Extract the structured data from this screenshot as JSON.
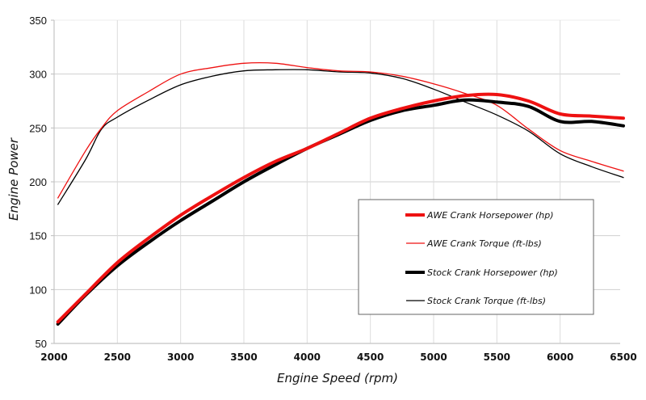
{
  "chart_data": {
    "type": "line",
    "title": "",
    "xlabel": "Engine Speed (rpm)",
    "ylabel": "Engine Power",
    "xlim": [
      2000,
      6500
    ],
    "ylim": [
      50,
      350
    ],
    "x_ticks": [
      2000,
      2500,
      3000,
      3500,
      4000,
      4500,
      5000,
      5500,
      6000,
      6500
    ],
    "y_ticks": [
      50,
      100,
      150,
      200,
      250,
      300,
      350
    ],
    "grid": true,
    "legend_position": "center-right",
    "series": [
      {
        "name": "AWE Crank Horsepower (hp)",
        "color": "#ee1111",
        "weight": "thick",
        "x": [
          2030,
          2250,
          2500,
          2750,
          3000,
          3250,
          3500,
          3750,
          4000,
          4250,
          4500,
          4750,
          5000,
          5250,
          5500,
          5750,
          6000,
          6250,
          6500
        ],
        "y": [
          70,
          96,
          125,
          148,
          169,
          187,
          204,
          219,
          231,
          245,
          259,
          268,
          275,
          280,
          281,
          275,
          263,
          261,
          259
        ]
      },
      {
        "name": "AWE Crank Torque (ft-lbs)",
        "color": "#ee1111",
        "weight": "thin",
        "x": [
          2030,
          2250,
          2375,
          2500,
          2750,
          3000,
          3250,
          3500,
          3750,
          4000,
          4250,
          4500,
          4750,
          5000,
          5250,
          5500,
          5750,
          6000,
          6250,
          6500
        ],
        "y": [
          185,
          229,
          250,
          266,
          284,
          300,
          306,
          310,
          310,
          306,
          303,
          302,
          298,
          291,
          282,
          271,
          249,
          229,
          219,
          210
        ]
      },
      {
        "name": "Stock Crank Horsepower (hp)",
        "color": "#000000",
        "weight": "thick",
        "x": [
          2030,
          2250,
          2500,
          2750,
          3000,
          3250,
          3500,
          3750,
          4000,
          4250,
          4500,
          4750,
          5000,
          5250,
          5500,
          5750,
          6000,
          6250,
          6500
        ],
        "y": [
          68,
          95,
          122,
          144,
          164,
          182,
          200,
          216,
          231,
          244,
          257,
          266,
          271,
          276,
          274,
          270,
          256,
          256,
          252
        ]
      },
      {
        "name": "Stock Crank Torque (ft-lbs)",
        "color": "#000000",
        "weight": "thin",
        "x": [
          2030,
          2250,
          2375,
          2500,
          2750,
          3000,
          3250,
          3500,
          3750,
          4000,
          4250,
          4500,
          4750,
          5000,
          5250,
          5500,
          5750,
          6000,
          6250,
          6500
        ],
        "y": [
          179,
          221,
          249,
          260,
          276,
          290,
          298,
          303,
          304,
          304,
          302,
          301,
          296,
          286,
          274,
          262,
          247,
          226,
          214,
          204
        ]
      }
    ]
  }
}
